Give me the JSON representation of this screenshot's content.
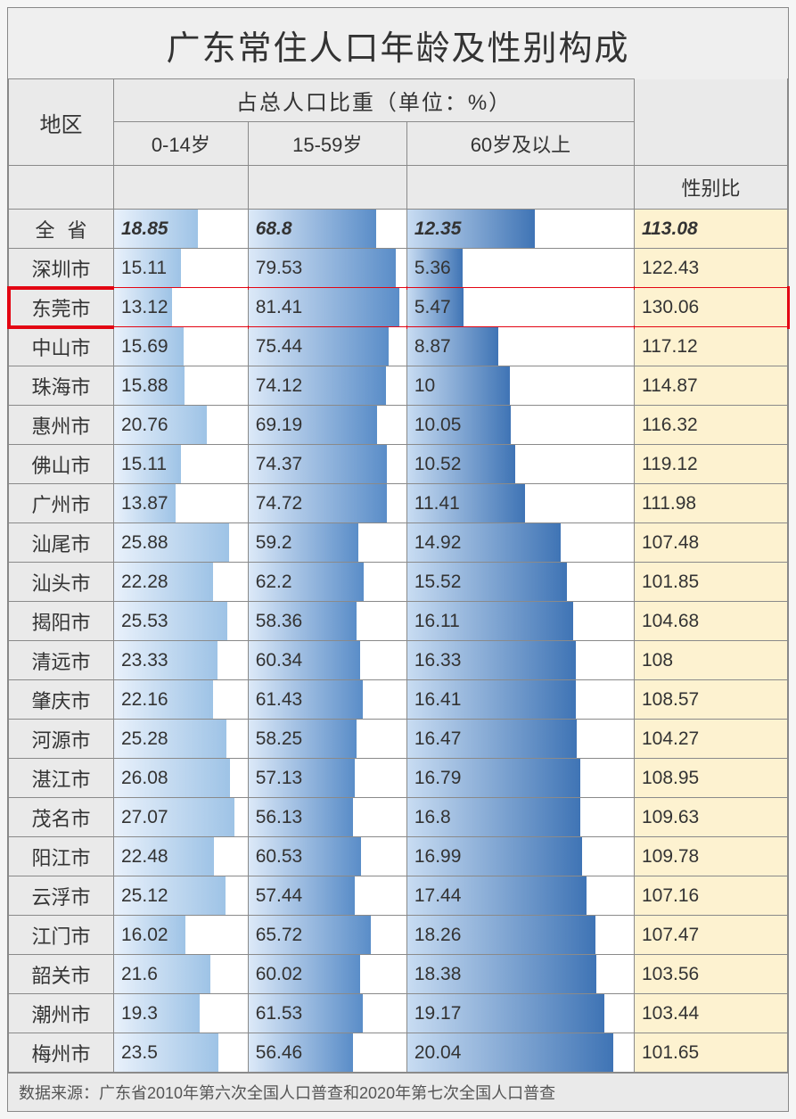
{
  "title": "广东常住人口年龄及性别构成",
  "header": {
    "region": "地区",
    "group": "占总人口比重（单位：%）",
    "sub": [
      "0-14岁",
      "15-59岁",
      "60岁及以上"
    ],
    "ratio": "性别比"
  },
  "columns": {
    "a": {
      "max": 30,
      "gradient": [
        "#e9f1fb",
        "#9ec3e6"
      ]
    },
    "b": {
      "max": 85,
      "gradient": [
        "#dce9f8",
        "#5a8dc8"
      ]
    },
    "c": {
      "max": 22,
      "gradient": [
        "#c8dcf2",
        "#3f74b5"
      ]
    }
  },
  "ratio_bg": "#fdf2d0",
  "highlight_color": "#e30613",
  "total": {
    "region": "全省",
    "a": 18.85,
    "b": 68.8,
    "c": 12.35,
    "ratio": 113.08
  },
  "rows": [
    {
      "region": "深圳市",
      "a": 15.11,
      "b": 79.53,
      "c": 5.36,
      "ratio": 122.43
    },
    {
      "region": "东莞市",
      "a": 13.12,
      "b": 81.41,
      "c": 5.47,
      "ratio": 130.06,
      "highlight": true
    },
    {
      "region": "中山市",
      "a": 15.69,
      "b": 75.44,
      "c": 8.87,
      "ratio": 117.12
    },
    {
      "region": "珠海市",
      "a": 15.88,
      "b": 74.12,
      "c": 10,
      "ratio": 114.87
    },
    {
      "region": "惠州市",
      "a": 20.76,
      "b": 69.19,
      "c": 10.05,
      "ratio": 116.32
    },
    {
      "region": "佛山市",
      "a": 15.11,
      "b": 74.37,
      "c": 10.52,
      "ratio": 119.12
    },
    {
      "region": "广州市",
      "a": 13.87,
      "b": 74.72,
      "c": 11.41,
      "ratio": 111.98
    },
    {
      "region": "汕尾市",
      "a": 25.88,
      "b": 59.2,
      "c": 14.92,
      "ratio": 107.48
    },
    {
      "region": "汕头市",
      "a": 22.28,
      "b": 62.2,
      "c": 15.52,
      "ratio": 101.85
    },
    {
      "region": "揭阳市",
      "a": 25.53,
      "b": 58.36,
      "c": 16.11,
      "ratio": 104.68
    },
    {
      "region": "清远市",
      "a": 23.33,
      "b": 60.34,
      "c": 16.33,
      "ratio": 108
    },
    {
      "region": "肇庆市",
      "a": 22.16,
      "b": 61.43,
      "c": 16.41,
      "ratio": 108.57
    },
    {
      "region": "河源市",
      "a": 25.28,
      "b": 58.25,
      "c": 16.47,
      "ratio": 104.27
    },
    {
      "region": "湛江市",
      "a": 26.08,
      "b": 57.13,
      "c": 16.79,
      "ratio": 108.95
    },
    {
      "region": "茂名市",
      "a": 27.07,
      "b": 56.13,
      "c": 16.8,
      "ratio": 109.63
    },
    {
      "region": "阳江市",
      "a": 22.48,
      "b": 60.53,
      "c": 16.99,
      "ratio": 109.78
    },
    {
      "region": "云浮市",
      "a": 25.12,
      "b": 57.44,
      "c": 17.44,
      "ratio": 107.16
    },
    {
      "region": "江门市",
      "a": 16.02,
      "b": 65.72,
      "c": 18.26,
      "ratio": 107.47
    },
    {
      "region": "韶关市",
      "a": 21.6,
      "b": 60.02,
      "c": 18.38,
      "ratio": 103.56
    },
    {
      "region": "潮州市",
      "a": 19.3,
      "b": 61.53,
      "c": 19.17,
      "ratio": 103.44
    },
    {
      "region": "梅州市",
      "a": 23.5,
      "b": 56.46,
      "c": 20.04,
      "ratio": 101.65
    }
  ],
  "source": "数据来源：广东省2010年第六次全国人口普查和2020年第七次全国人口普查"
}
